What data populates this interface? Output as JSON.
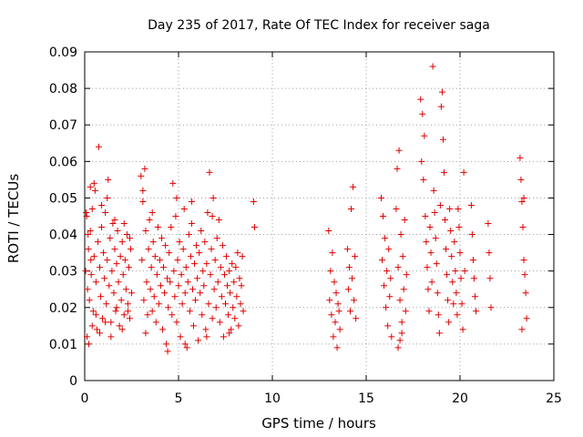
{
  "chart_data": {
    "type": "scatter",
    "title": "Day 235 of 2017, Rate Of TEC Index for receiver saga",
    "xlabel": "GPS time / hours",
    "ylabel": "ROTI / TECUs",
    "xlim": [
      0,
      25
    ],
    "ylim": [
      0,
      0.09
    ],
    "xticks": [
      0,
      5,
      10,
      15,
      20,
      25
    ],
    "xtick_labels": [
      "0",
      "5",
      "10",
      "15",
      "20",
      "25"
    ],
    "yticks": [
      0,
      0.01,
      0.02,
      0.03,
      0.04,
      0.05,
      0.06,
      0.07,
      0.08,
      0.09
    ],
    "ytick_labels": [
      "0",
      "0.01",
      "0.02",
      "0.03",
      "0.04",
      "0.05",
      "0.06",
      "0.07",
      "0.08",
      "0.09"
    ],
    "grid": true,
    "marker": "plus",
    "color": "#e00000",
    "series": [
      {
        "points": [
          [
            0.05,
            0.03
          ],
          [
            0.1,
            0.045
          ],
          [
            0.15,
            0.025
          ],
          [
            0.2,
            0.036
          ],
          [
            0.25,
            0.022
          ],
          [
            0.3,
            0.041
          ],
          [
            0.35,
            0.029
          ],
          [
            0.4,
            0.047
          ],
          [
            0.45,
            0.019
          ],
          [
            0.5,
            0.034
          ],
          [
            0.55,
            0.052
          ],
          [
            0.6,
            0.027
          ],
          [
            0.65,
            0.014
          ],
          [
            0.7,
            0.038
          ],
          [
            0.75,
            0.064
          ],
          [
            0.8,
            0.031
          ],
          [
            0.85,
            0.023
          ],
          [
            0.9,
            0.042
          ],
          [
            0.95,
            0.017
          ],
          [
            1.0,
            0.035
          ],
          [
            1.05,
            0.028
          ],
          [
            1.1,
            0.046
          ],
          [
            1.15,
            0.021
          ],
          [
            1.2,
            0.033
          ],
          [
            1.25,
            0.055
          ],
          [
            1.3,
            0.026
          ],
          [
            1.35,
            0.039
          ],
          [
            1.4,
            0.016
          ],
          [
            1.45,
            0.03
          ],
          [
            1.5,
            0.043
          ],
          [
            1.55,
            0.024
          ],
          [
            1.6,
            0.036
          ],
          [
            1.65,
            0.019
          ],
          [
            1.7,
            0.032
          ],
          [
            1.75,
            0.041
          ],
          [
            1.8,
            0.027
          ],
          [
            1.85,
            0.015
          ],
          [
            1.9,
            0.034
          ],
          [
            1.95,
            0.022
          ],
          [
            2.0,
            0.038
          ],
          [
            2.05,
            0.029
          ],
          [
            2.1,
            0.018
          ],
          [
            2.15,
            0.033
          ],
          [
            2.2,
            0.025
          ],
          [
            2.25,
            0.04
          ],
          [
            2.3,
            0.021
          ],
          [
            2.35,
            0.031
          ],
          [
            2.4,
            0.017
          ],
          [
            2.45,
            0.036
          ],
          [
            2.5,
            0.024
          ],
          [
            0.12,
            0.012
          ],
          [
            0.22,
            0.01
          ],
          [
            0.4,
            0.015
          ],
          [
            0.6,
            0.018
          ],
          [
            0.8,
            0.013
          ],
          [
            1.1,
            0.016
          ],
          [
            1.4,
            0.012
          ],
          [
            1.7,
            0.02
          ],
          [
            2.0,
            0.014
          ],
          [
            2.3,
            0.019
          ],
          [
            0.3,
            0.053
          ],
          [
            0.5,
            0.054
          ],
          [
            0.9,
            0.048
          ],
          [
            1.2,
            0.05
          ],
          [
            1.6,
            0.044
          ],
          [
            2.1,
            0.043
          ],
          [
            2.4,
            0.039
          ],
          [
            0.07,
            0.046
          ],
          [
            0.18,
            0.04
          ],
          [
            0.33,
            0.033
          ],
          [
            3.0,
            0.056
          ],
          [
            3.05,
            0.033
          ],
          [
            3.1,
            0.049
          ],
          [
            3.15,
            0.022
          ],
          [
            3.2,
            0.058
          ],
          [
            3.25,
            0.041
          ],
          [
            3.3,
            0.027
          ],
          [
            3.35,
            0.018
          ],
          [
            3.4,
            0.036
          ],
          [
            3.45,
            0.044
          ],
          [
            3.5,
            0.025
          ],
          [
            3.55,
            0.031
          ],
          [
            3.6,
            0.019
          ],
          [
            3.65,
            0.038
          ],
          [
            3.7,
            0.023
          ],
          [
            3.75,
            0.034
          ],
          [
            3.8,
            0.016
          ],
          [
            3.85,
            0.029
          ],
          [
            3.9,
            0.042
          ],
          [
            3.95,
            0.021
          ],
          [
            4.0,
            0.033
          ],
          [
            4.05,
            0.026
          ],
          [
            4.1,
            0.039
          ],
          [
            4.15,
            0.014
          ],
          [
            4.2,
            0.031
          ],
          [
            4.25,
            0.024
          ],
          [
            4.3,
            0.037
          ],
          [
            4.35,
            0.01
          ],
          [
            4.4,
            0.028
          ],
          [
            4.45,
            0.02
          ],
          [
            4.5,
            0.035
          ],
          [
            4.55,
            0.027
          ],
          [
            4.6,
            0.042
          ],
          [
            4.65,
            0.018
          ],
          [
            4.7,
            0.054
          ],
          [
            4.75,
            0.03
          ],
          [
            4.8,
            0.023
          ],
          [
            4.85,
            0.045
          ],
          [
            4.9,
            0.016
          ],
          [
            4.95,
            0.033
          ],
          [
            5.0,
            0.026
          ],
          [
            5.05,
            0.038
          ],
          [
            5.1,
            0.012
          ],
          [
            5.15,
            0.029
          ],
          [
            5.2,
            0.021
          ],
          [
            5.25,
            0.036
          ],
          [
            5.3,
            0.047
          ],
          [
            5.35,
            0.024
          ],
          [
            5.4,
            0.031
          ],
          [
            5.45,
            0.009
          ],
          [
            5.5,
            0.027
          ],
          [
            5.55,
            0.04
          ],
          [
            5.6,
            0.019
          ],
          [
            5.65,
            0.034
          ],
          [
            5.7,
            0.043
          ],
          [
            5.75,
            0.025
          ],
          [
            5.8,
            0.015
          ],
          [
            5.85,
            0.032
          ],
          [
            5.9,
            0.022
          ],
          [
            5.95,
            0.037
          ],
          [
            6.0,
            0.028
          ],
          [
            6.05,
            0.011
          ],
          [
            6.1,
            0.035
          ],
          [
            6.15,
            0.024
          ],
          [
            6.2,
            0.041
          ],
          [
            6.25,
            0.018
          ],
          [
            6.3,
            0.03
          ],
          [
            6.35,
            0.026
          ],
          [
            6.4,
            0.038
          ],
          [
            6.45,
            0.014
          ],
          [
            6.5,
            0.032
          ],
          [
            6.55,
            0.046
          ],
          [
            6.6,
            0.021
          ],
          [
            6.65,
            0.057
          ],
          [
            6.7,
            0.029
          ],
          [
            6.75,
            0.036
          ],
          [
            6.8,
            0.017
          ],
          [
            6.85,
            0.05
          ],
          [
            6.9,
            0.025
          ],
          [
            6.95,
            0.033
          ],
          [
            7.0,
            0.02
          ],
          [
            7.05,
            0.039
          ],
          [
            7.1,
            0.027
          ],
          [
            7.15,
            0.044
          ],
          [
            7.2,
            0.016
          ],
          [
            7.25,
            0.031
          ],
          [
            7.3,
            0.023
          ],
          [
            7.35,
            0.037
          ],
          [
            7.4,
            0.012
          ],
          [
            7.45,
            0.029
          ],
          [
            7.5,
            0.021
          ],
          [
            7.55,
            0.034
          ],
          [
            7.6,
            0.026
          ],
          [
            7.65,
            0.018
          ],
          [
            7.7,
            0.03
          ],
          [
            7.75,
            0.024
          ],
          [
            7.8,
            0.014
          ],
          [
            7.85,
            0.032
          ],
          [
            7.9,
            0.02
          ],
          [
            7.95,
            0.027
          ],
          [
            8.0,
            0.017
          ],
          [
            8.05,
            0.031
          ],
          [
            8.1,
            0.023
          ],
          [
            8.15,
            0.035
          ],
          [
            8.2,
            0.015
          ],
          [
            8.25,
            0.028
          ],
          [
            8.3,
            0.021
          ],
          [
            8.35,
            0.026
          ],
          [
            8.4,
            0.034
          ],
          [
            8.45,
            0.019
          ],
          [
            4.42,
            0.008
          ],
          [
            5.35,
            0.01
          ],
          [
            3.25,
            0.013
          ],
          [
            6.5,
            0.012
          ],
          [
            7.7,
            0.013
          ],
          [
            4.9,
            0.05
          ],
          [
            3.1,
            0.052
          ],
          [
            5.7,
            0.049
          ],
          [
            6.8,
            0.045
          ],
          [
            3.6,
            0.046
          ],
          [
            9.0,
            0.049
          ],
          [
            9.05,
            0.042
          ],
          [
            13.0,
            0.041
          ],
          [
            13.05,
            0.022
          ],
          [
            13.1,
            0.03
          ],
          [
            13.15,
            0.018
          ],
          [
            13.2,
            0.035
          ],
          [
            13.25,
            0.012
          ],
          [
            13.3,
            0.027
          ],
          [
            13.35,
            0.016
          ],
          [
            13.4,
            0.024
          ],
          [
            13.45,
            0.009
          ],
          [
            13.5,
            0.021
          ],
          [
            13.55,
            0.019
          ],
          [
            13.6,
            0.014
          ],
          [
            14.0,
            0.036
          ],
          [
            14.05,
            0.025
          ],
          [
            14.1,
            0.031
          ],
          [
            14.15,
            0.019
          ],
          [
            14.2,
            0.047
          ],
          [
            14.25,
            0.028
          ],
          [
            14.3,
            0.053
          ],
          [
            14.35,
            0.022
          ],
          [
            14.4,
            0.034
          ],
          [
            14.45,
            0.017
          ],
          [
            15.8,
            0.05
          ],
          [
            15.85,
            0.033
          ],
          [
            15.9,
            0.045
          ],
          [
            15.95,
            0.026
          ],
          [
            16.0,
            0.039
          ],
          [
            16.05,
            0.02
          ],
          [
            16.1,
            0.03
          ],
          [
            16.15,
            0.015
          ],
          [
            16.2,
            0.036
          ],
          [
            16.25,
            0.023
          ],
          [
            16.3,
            0.028
          ],
          [
            16.35,
            0.012
          ],
          [
            16.6,
            0.047
          ],
          [
            16.65,
            0.058
          ],
          [
            16.7,
            0.031
          ],
          [
            16.75,
            0.063
          ],
          [
            16.8,
            0.022
          ],
          [
            16.85,
            0.04
          ],
          [
            16.9,
            0.016
          ],
          [
            16.95,
            0.034
          ],
          [
            17.0,
            0.025
          ],
          [
            17.05,
            0.044
          ],
          [
            17.1,
            0.019
          ],
          [
            17.15,
            0.029
          ],
          [
            16.7,
            0.009
          ],
          [
            16.8,
            0.011
          ],
          [
            16.9,
            0.013
          ],
          [
            17.9,
            0.077
          ],
          [
            17.95,
            0.06
          ],
          [
            18.0,
            0.073
          ],
          [
            18.05,
            0.055
          ],
          [
            18.1,
            0.067
          ],
          [
            18.15,
            0.045
          ],
          [
            18.2,
            0.038
          ],
          [
            18.25,
            0.031
          ],
          [
            18.3,
            0.025
          ],
          [
            18.35,
            0.019
          ],
          [
            18.4,
            0.042
          ],
          [
            18.45,
            0.035
          ],
          [
            18.5,
            0.027
          ],
          [
            18.55,
            0.086
          ],
          [
            18.6,
            0.052
          ],
          [
            18.65,
            0.046
          ],
          [
            18.7,
            0.039
          ],
          [
            18.75,
            0.032
          ],
          [
            18.8,
            0.024
          ],
          [
            18.85,
            0.018
          ],
          [
            18.9,
            0.013
          ],
          [
            18.95,
            0.048
          ],
          [
            19.0,
            0.075
          ],
          [
            19.05,
            0.079
          ],
          [
            19.1,
            0.066
          ],
          [
            19.15,
            0.057
          ],
          [
            19.2,
            0.044
          ],
          [
            19.25,
            0.036
          ],
          [
            19.3,
            0.029
          ],
          [
            19.35,
            0.022
          ],
          [
            19.4,
            0.016
          ],
          [
            19.45,
            0.047
          ],
          [
            19.5,
            0.041
          ],
          [
            19.55,
            0.034
          ],
          [
            19.6,
            0.027
          ],
          [
            19.65,
            0.021
          ],
          [
            19.7,
            0.038
          ],
          [
            19.75,
            0.03
          ],
          [
            19.8,
            0.024
          ],
          [
            19.85,
            0.018
          ],
          [
            19.9,
            0.047
          ],
          [
            19.95,
            0.042
          ],
          [
            20.0,
            0.035
          ],
          [
            20.05,
            0.028
          ],
          [
            20.1,
            0.021
          ],
          [
            20.15,
            0.014
          ],
          [
            20.2,
            0.057
          ],
          [
            20.25,
            0.03
          ],
          [
            20.6,
            0.048
          ],
          [
            20.65,
            0.04
          ],
          [
            20.7,
            0.033
          ],
          [
            20.75,
            0.028
          ],
          [
            20.8,
            0.023
          ],
          [
            20.85,
            0.019
          ],
          [
            21.5,
            0.043
          ],
          [
            21.55,
            0.035
          ],
          [
            21.6,
            0.028
          ],
          [
            21.65,
            0.02
          ],
          [
            23.2,
            0.061
          ],
          [
            23.25,
            0.055
          ],
          [
            23.3,
            0.049
          ],
          [
            23.35,
            0.042
          ],
          [
            23.4,
            0.033
          ],
          [
            23.45,
            0.029
          ],
          [
            23.5,
            0.024
          ],
          [
            23.55,
            0.017
          ],
          [
            23.3,
            0.014
          ],
          [
            23.4,
            0.05
          ]
        ]
      }
    ]
  }
}
